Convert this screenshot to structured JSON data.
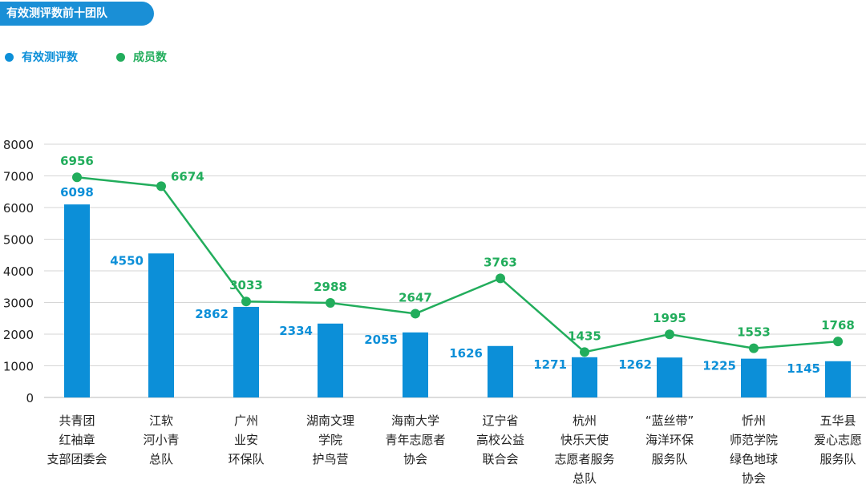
{
  "header": {
    "title": "有效测评数前十团队"
  },
  "colors": {
    "bar": "#0c8fd8",
    "line": "#22ad5c",
    "axis_text": "#222222",
    "grid": "#d6d6d6"
  },
  "chart_data": {
    "type": "bar",
    "title": "有效测评数前十团队",
    "legend_position": "top-left",
    "grid": true,
    "ylim": [
      0,
      8000
    ],
    "yticks": [
      "0",
      "1000",
      "2000",
      "3000",
      "4000",
      "5000",
      "6000",
      "7000",
      "8000"
    ],
    "categories": [
      [
        "共青团",
        "红袖章",
        "支部团委会"
      ],
      [
        "江软",
        "河小青",
        "总队"
      ],
      [
        "广州",
        "业安",
        "环保队"
      ],
      [
        "湖南文理",
        "学院",
        "护鸟营"
      ],
      [
        "海南大学",
        "青年志愿者",
        "协会"
      ],
      [
        "辽宁省",
        "高校公益",
        "联合会"
      ],
      [
        "杭州",
        "快乐天使",
        "志愿者服务",
        "总队"
      ],
      [
        "“蓝丝带”",
        "海洋环保",
        "服务队"
      ],
      [
        "忻州",
        "师范学院",
        "绿色地球",
        "协会"
      ],
      [
        "五华县",
        "爱心志愿",
        "服务队"
      ]
    ],
    "series": [
      {
        "name": "有效测评数",
        "type": "bar",
        "color": "#0c8fd8",
        "values": [
          6098,
          4550,
          2862,
          2334,
          2055,
          1626,
          1271,
          1262,
          1225,
          1145
        ]
      },
      {
        "name": "成员数",
        "type": "line",
        "color": "#22ad5c",
        "values": [
          6956,
          6674,
          3033,
          2988,
          2647,
          3763,
          1435,
          1995,
          1553,
          1768
        ]
      }
    ]
  }
}
